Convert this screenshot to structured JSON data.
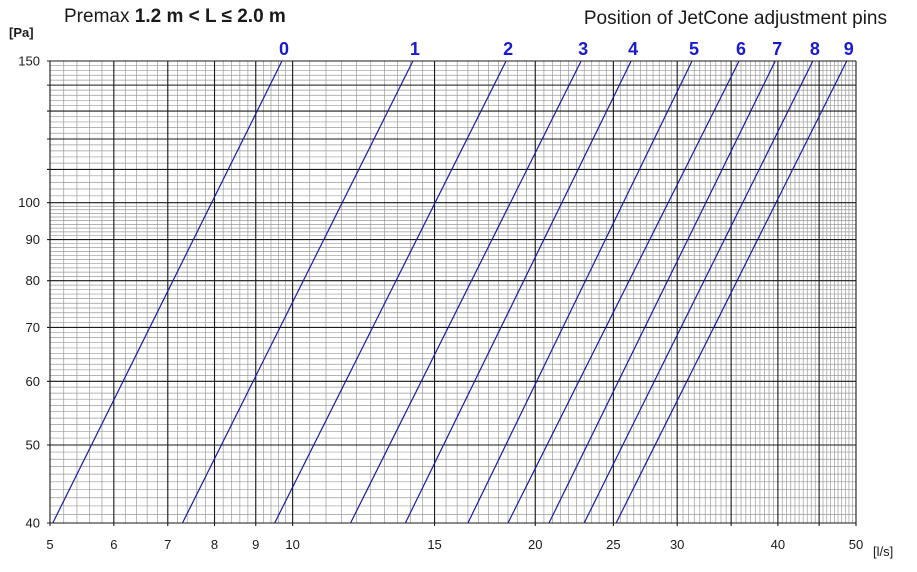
{
  "title": {
    "prefix": "Premax",
    "bold": "1.2 m < L ≤ 2.0 m"
  },
  "right_title": "Position of JetCone adjustment pins",
  "ylabel": "[Pa]",
  "xunit": "[l/s]",
  "colors": {
    "line": "#1a1aa6",
    "pin_label": "#1a1ad0",
    "grid_major": "#1a1a1a",
    "grid_minor": "#9a9a9a"
  },
  "chart_data": {
    "type": "line",
    "title": "Premax 1.2 m < L ≤ 2.0 m",
    "xlabel": "[l/s]",
    "ylabel": "[Pa]",
    "xscale": "log",
    "yscale": "log",
    "xlim": [
      5,
      50
    ],
    "ylim": [
      40,
      150
    ],
    "grid": true,
    "x_ticks": [
      5,
      6,
      7,
      8,
      9,
      10,
      15,
      20,
      25,
      30,
      40,
      50
    ],
    "y_ticks": [
      40,
      50,
      60,
      70,
      80,
      90,
      100,
      150
    ],
    "legend_title": "Position of JetCone adjustment pins",
    "series": [
      {
        "name": "0",
        "x": [
          5.04,
          9.7
        ],
        "y": [
          40,
          150
        ]
      },
      {
        "name": "1",
        "x": [
          7.3,
          14.1
        ],
        "y": [
          40,
          150
        ]
      },
      {
        "name": "2",
        "x": [
          9.5,
          18.4
        ],
        "y": [
          40,
          150
        ]
      },
      {
        "name": "3",
        "x": [
          11.8,
          22.8
        ],
        "y": [
          40,
          150
        ]
      },
      {
        "name": "4",
        "x": [
          13.8,
          26.3
        ],
        "y": [
          40,
          150
        ]
      },
      {
        "name": "5",
        "x": [
          16.5,
          31.3
        ],
        "y": [
          40,
          150
        ]
      },
      {
        "name": "6",
        "x": [
          18.5,
          35.8
        ],
        "y": [
          40,
          150
        ]
      },
      {
        "name": "7",
        "x": [
          20.8,
          39.7
        ],
        "y": [
          40,
          150
        ]
      },
      {
        "name": "8",
        "x": [
          23.0,
          44.2
        ],
        "y": [
          40,
          150
        ]
      },
      {
        "name": "9",
        "x": [
          25.2,
          48.7
        ],
        "y": [
          40,
          150
        ]
      }
    ]
  }
}
